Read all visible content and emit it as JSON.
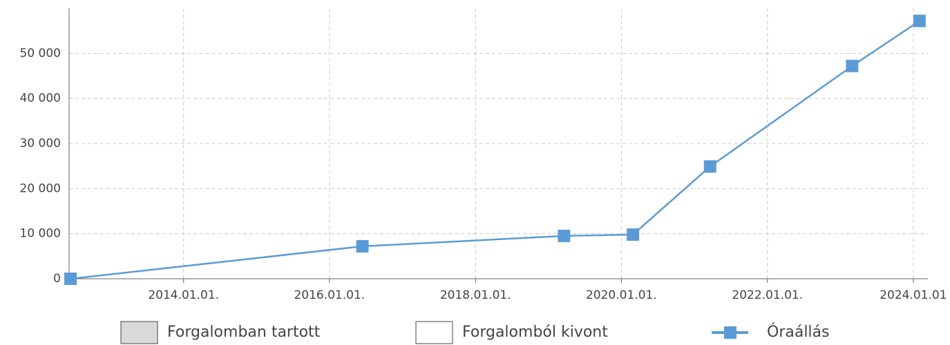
{
  "chart_data": {
    "type": "line",
    "x": [
      "2012-06-14",
      "2016-06-14",
      "2019-03-20",
      "2020-02-28",
      "2021-03-20",
      "2023-03-01",
      "2024-02-01"
    ],
    "series": [
      {
        "name": "Óraállás",
        "color": "#5b9bd5",
        "values": [
          0,
          7200,
          9500,
          9800,
          24900,
          47200,
          57200
        ]
      }
    ],
    "legend_boxes": [
      {
        "name": "Forgalomban tartott",
        "color": "#d9d9d9"
      },
      {
        "name": "Forgalomból kivont",
        "color": "#ffffff"
      }
    ],
    "xlim": [
      "2012-06-07",
      "2024-03-14"
    ],
    "xticks": [
      {
        "value": "2014-01-01",
        "label": "2014.01.01."
      },
      {
        "value": "2016-01-01",
        "label": "2016.01.01."
      },
      {
        "value": "2018-01-01",
        "label": "2018.01.01."
      },
      {
        "value": "2020-01-01",
        "label": "2020.01.01."
      },
      {
        "value": "2022-01-01",
        "label": "2022.01.01."
      },
      {
        "value": "2024-01-01",
        "label": "2024.01.01"
      }
    ],
    "ylim": [
      0,
      60000
    ],
    "yticks": [
      0,
      {
        "value": 10000,
        "label": "10 000"
      },
      {
        "value": 20000,
        "label": "20 000"
      },
      {
        "value": 30000,
        "label": "30 000"
      },
      {
        "value": 40000,
        "label": "40 000"
      },
      {
        "value": 50000,
        "label": "50 000"
      }
    ],
    "grid": true
  }
}
